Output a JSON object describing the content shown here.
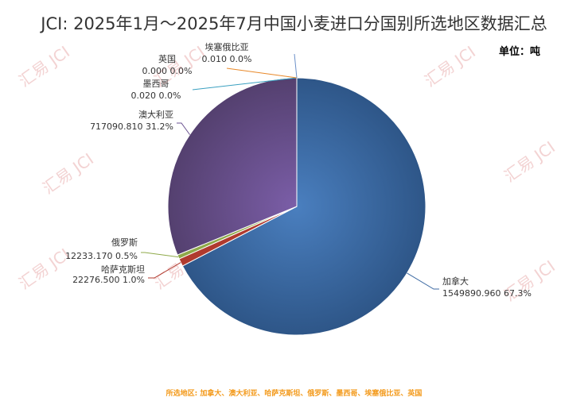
{
  "page": {
    "title": "JCI: 2025年1月～2025年7月中国小麦进口分国别所选地区数据汇总",
    "unit": "单位：吨",
    "footer": "所选地区: 加拿大、澳大利亚、哈萨克斯坦、俄罗斯、墨西哥、埃塞俄比亚、英国",
    "watermark": "汇易 JCI"
  },
  "chart_data": {
    "type": "pie",
    "title": "JCI: 2025年1月～2025年7月中国小麦进口分国别所选地区数据汇总",
    "unit": "单位：吨",
    "legend": "none",
    "start_angle": "12 o'clock, clockwise",
    "slices": [
      {
        "name": "加拿大",
        "value": 1549890.96,
        "value_label": "1549890.960",
        "percent_label": "67.3%",
        "color": "#3d6aa3"
      },
      {
        "name": "哈萨克斯坦",
        "value": 22276.5,
        "value_label": "22276.500",
        "percent_label": "1.0%",
        "color": "#b03a2e"
      },
      {
        "name": "俄罗斯",
        "value": 12233.17,
        "value_label": "12233.170",
        "percent_label": "0.5%",
        "color": "#8faa4a"
      },
      {
        "name": "澳大利亚",
        "value": 717090.81,
        "value_label": "717090.810",
        "percent_label": "31.2%",
        "color": "#6a5190"
      },
      {
        "name": "墨西哥",
        "value": 0.02,
        "value_label": "0.020",
        "percent_label": "0.0%",
        "color": "#3aa0c0"
      },
      {
        "name": "英国",
        "value": 0.0,
        "value_label": "0.000",
        "percent_label": "0.0%",
        "color": "#e8892a"
      },
      {
        "name": "埃塞俄比亚",
        "value": 0.01,
        "value_label": "0.010",
        "percent_label": "0.0%",
        "color": "#6a8fc8"
      }
    ]
  }
}
